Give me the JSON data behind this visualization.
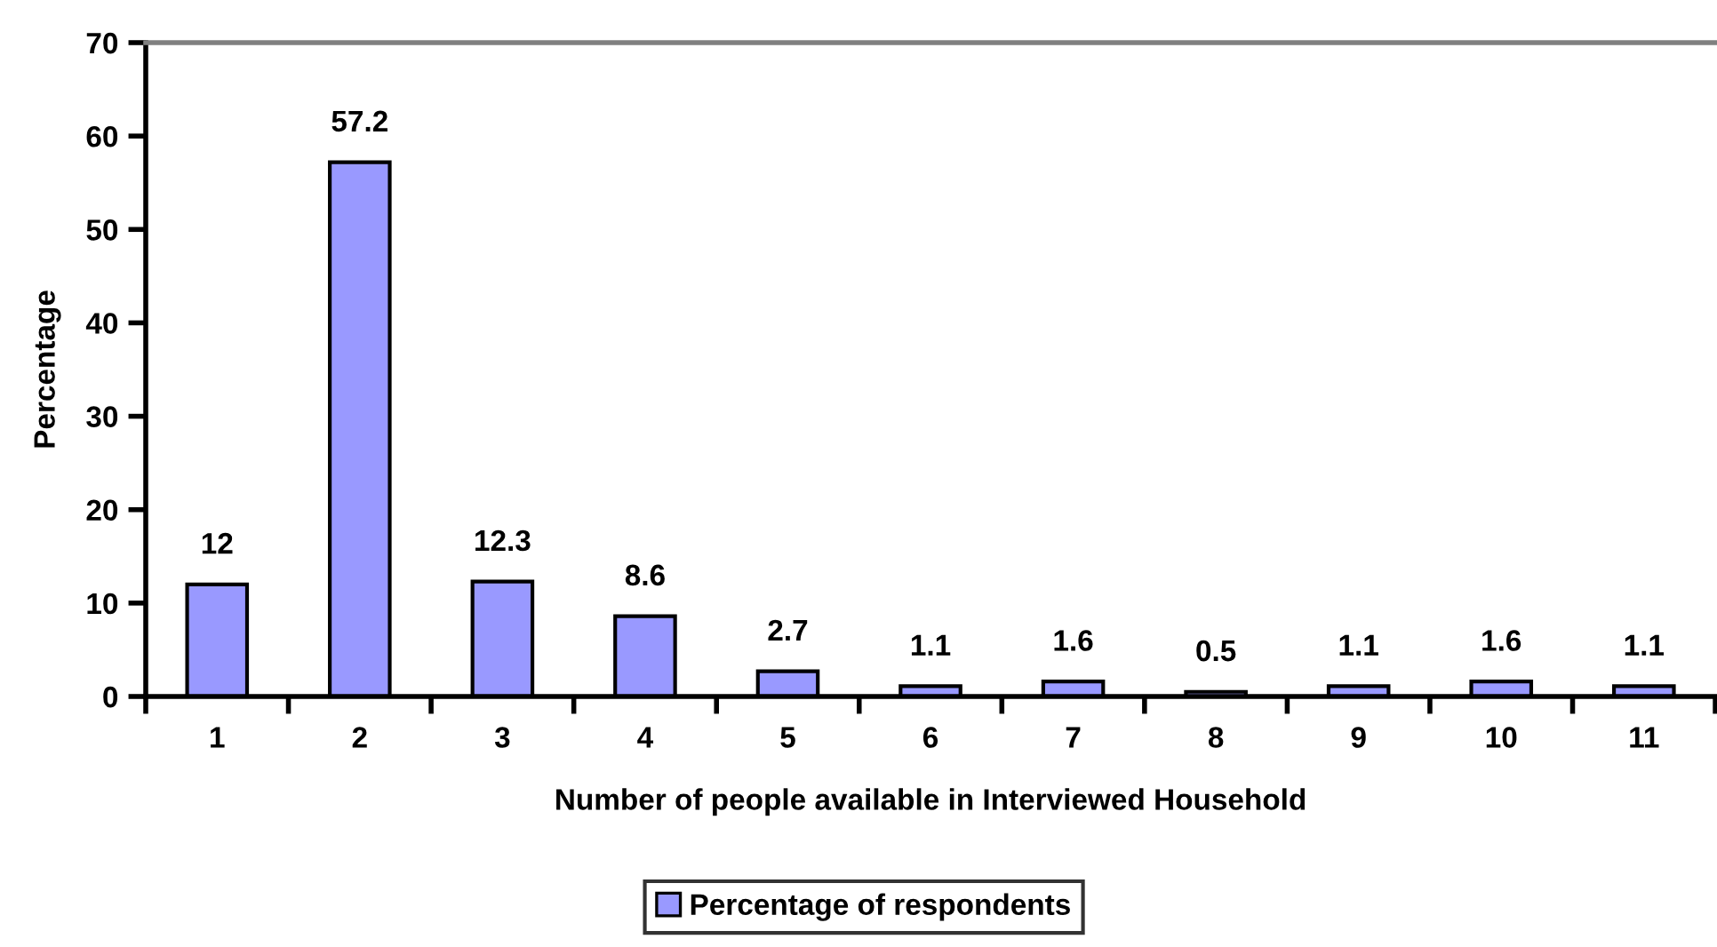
{
  "chart_data": {
    "type": "bar",
    "xlabel": "Number of people available in Interviewed Household",
    "ylabel": "Percentage",
    "categories": [
      "1",
      "2",
      "3",
      "4",
      "5",
      "6",
      "7",
      "8",
      "9",
      "10",
      "11"
    ],
    "series": [
      {
        "name": "Percentage of respondents",
        "color": "#9999ff",
        "values": [
          12,
          57.2,
          12.3,
          8.6,
          2.7,
          1.1,
          1.6,
          0.5,
          1.1,
          1.6,
          1.1
        ]
      }
    ],
    "ylim": [
      0,
      70
    ],
    "yticks": [
      0,
      10,
      20,
      30,
      40,
      50,
      60,
      70
    ],
    "data_labels": true,
    "legend": "bottom"
  }
}
